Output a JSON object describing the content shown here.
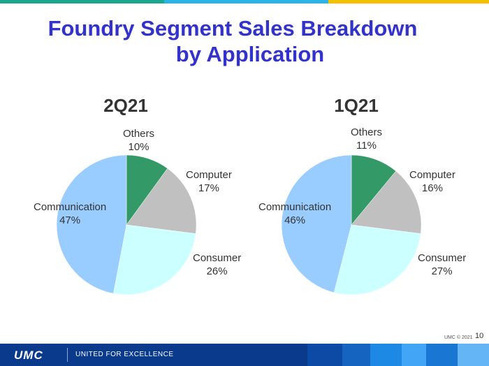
{
  "title_line1": "Foundry Segment Sales Breakdown",
  "title_line2": "by Application",
  "colors": {
    "title": "#3333cc",
    "others": "#339966",
    "computer": "#c0c0c0",
    "consumer": "#ccffff",
    "communication": "#99ccff"
  },
  "chart_data": [
    {
      "type": "pie",
      "title": "2Q21",
      "slices": [
        {
          "name": "Others",
          "value": 10,
          "label": "10%"
        },
        {
          "name": "Computer",
          "value": 17,
          "label": "17%"
        },
        {
          "name": "Consumer",
          "value": 26,
          "label": "26%"
        },
        {
          "name": "Communication",
          "value": 47,
          "label": "47%"
        }
      ]
    },
    {
      "type": "pie",
      "title": "1Q21",
      "slices": [
        {
          "name": "Others",
          "value": 11,
          "label": "11%"
        },
        {
          "name": "Computer",
          "value": 16,
          "label": "16%"
        },
        {
          "name": "Consumer",
          "value": 27,
          "label": "27%"
        },
        {
          "name": "Communication",
          "value": 46,
          "label": "46%"
        }
      ]
    }
  ],
  "footer": {
    "logo": "UMC",
    "tagline": "UNITED FOR EXCELLENCE",
    "copyright": "UMC © 2021",
    "page_number": "10"
  }
}
